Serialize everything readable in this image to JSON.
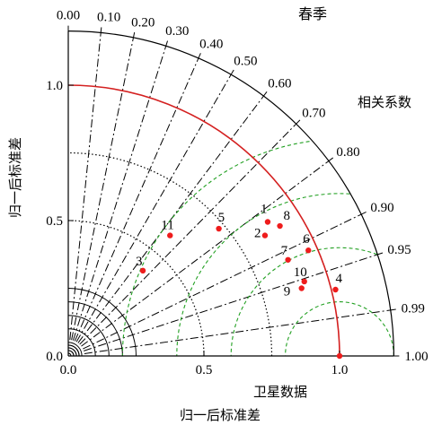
{
  "chart_data": {
    "type": "scatter",
    "subtype": "taylor-diagram",
    "title": "春季",
    "xlabel": "归一后标准差",
    "ylabel": "归一后标准差",
    "reference_label": "卫星数据",
    "correlation_label": "相关系数",
    "std_max": 1.2,
    "reference_std": 1.0,
    "x_ticks": [
      "0.0",
      "0.5",
      "1.0"
    ],
    "y_ticks": [
      "0.0",
      "0.5",
      "1.0"
    ],
    "correlation_ticks": [
      {
        "value": 0.0,
        "label": "0.00"
      },
      {
        "value": 0.1,
        "label": "0.10"
      },
      {
        "value": 0.2,
        "label": "0.20"
      },
      {
        "value": 0.3,
        "label": "0.30"
      },
      {
        "value": 0.4,
        "label": "0.40"
      },
      {
        "value": 0.5,
        "label": "0.50"
      },
      {
        "value": 0.6,
        "label": "0.60"
      },
      {
        "value": 0.7,
        "label": "0.70"
      },
      {
        "value": 0.8,
        "label": "0.80"
      },
      {
        "value": 0.9,
        "label": "0.90"
      },
      {
        "value": 0.95,
        "label": "0.95"
      },
      {
        "value": 0.99,
        "label": "0.99"
      },
      {
        "value": 1.0,
        "label": "1.00"
      }
    ],
    "rms_contours": [
      0.2,
      0.4,
      0.6,
      0.8
    ],
    "reference_point": {
      "x": 1.0,
      "y": 0.0
    },
    "points": [
      {
        "label": "1",
        "x": 0.735,
        "y": 0.495
      },
      {
        "label": "2",
        "x": 0.725,
        "y": 0.445
      },
      {
        "label": "3",
        "x": 0.275,
        "y": 0.315
      },
      {
        "label": "4",
        "x": 0.985,
        "y": 0.245
      },
      {
        "label": "5",
        "x": 0.555,
        "y": 0.47
      },
      {
        "label": "6",
        "x": 0.885,
        "y": 0.39
      },
      {
        "label": "7",
        "x": 0.81,
        "y": 0.355
      },
      {
        "label": "8",
        "x": 0.78,
        "y": 0.48
      },
      {
        "label": "9",
        "x": 0.86,
        "y": 0.25
      },
      {
        "label": "10",
        "x": 0.87,
        "y": 0.275
      },
      {
        "label": "11",
        "x": 0.375,
        "y": 0.445
      }
    ],
    "colors": {
      "reference_arc": "#d42020",
      "rms_contours": "#22a022",
      "points": "#ee1c1c",
      "reference_label": "#e01010"
    }
  }
}
